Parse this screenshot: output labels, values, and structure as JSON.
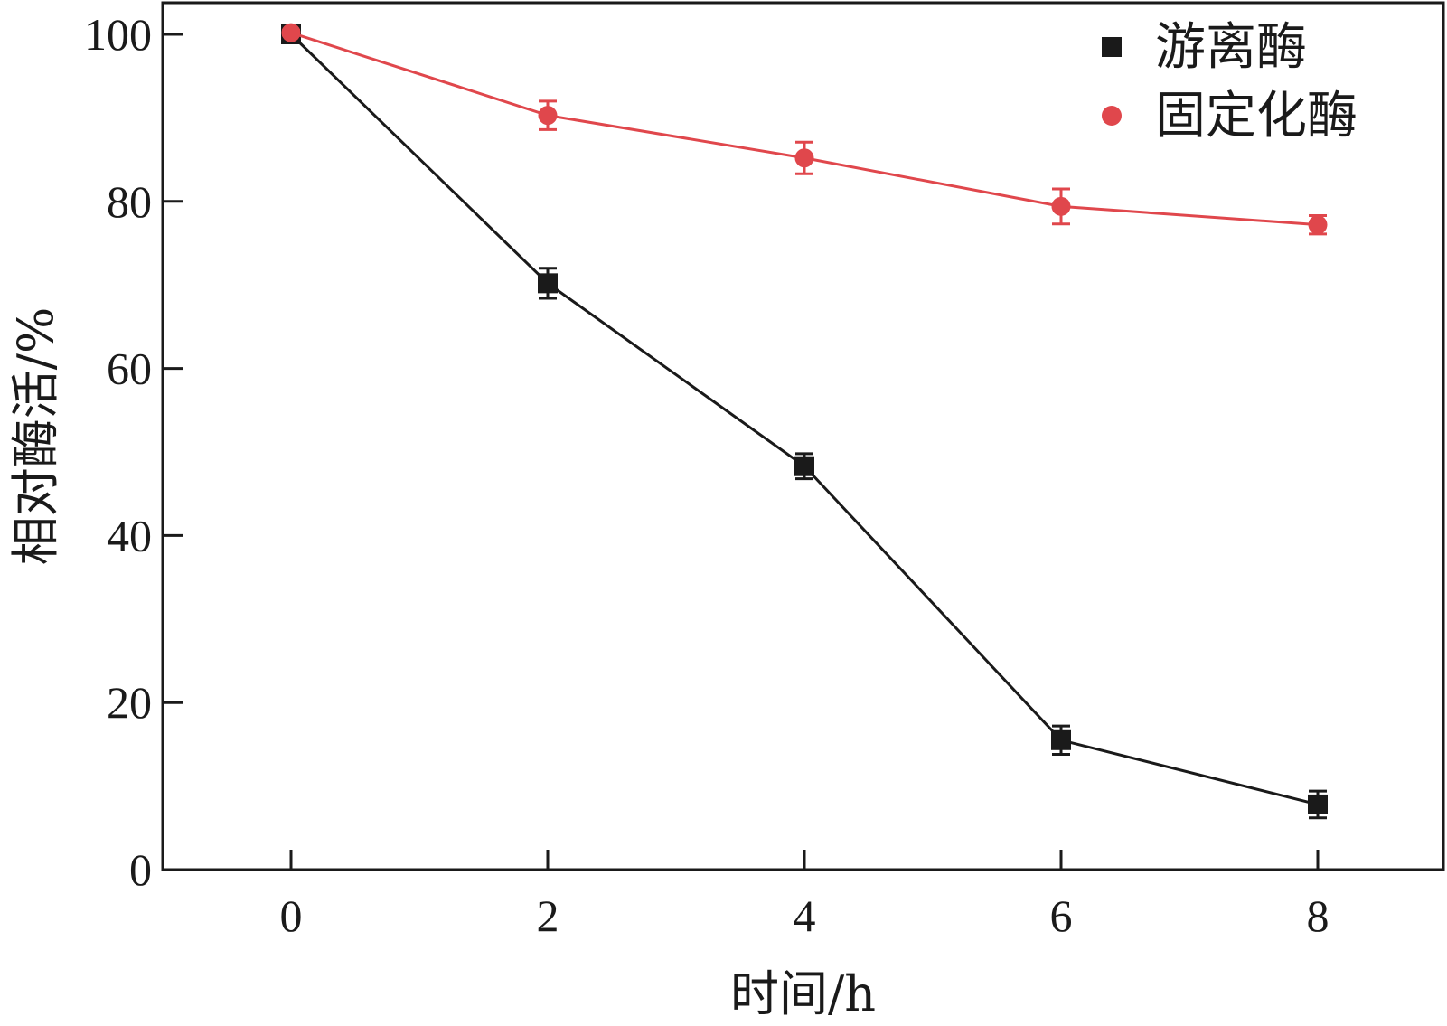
{
  "chart_data": {
    "type": "line",
    "xlabel": "时间/h",
    "ylabel": "相对酶活/%",
    "x": [
      0,
      2,
      4,
      6,
      8
    ],
    "x_ticks": [
      "0",
      "2",
      "4",
      "6",
      "8"
    ],
    "y_ticks": [
      "0",
      "20",
      "40",
      "60",
      "80",
      "100"
    ],
    "xlim": [
      -1,
      9
    ],
    "ylim": [
      0,
      100
    ],
    "grid": false,
    "legend_position": "top-right",
    "series": [
      {
        "name": "游离酶",
        "marker": "square",
        "color": "#1a1a1a",
        "values": [
          100,
          70.2,
          48.3,
          15.5,
          7.8
        ],
        "errors": [
          0.5,
          1.8,
          1.5,
          1.7,
          1.6
        ]
      },
      {
        "name": "固定化酶",
        "marker": "circle",
        "color": "#e0474c",
        "values": [
          100.2,
          90.3,
          85.2,
          79.4,
          77.2
        ],
        "errors": [
          0.3,
          1.7,
          1.9,
          2.1,
          1.1
        ]
      }
    ]
  }
}
